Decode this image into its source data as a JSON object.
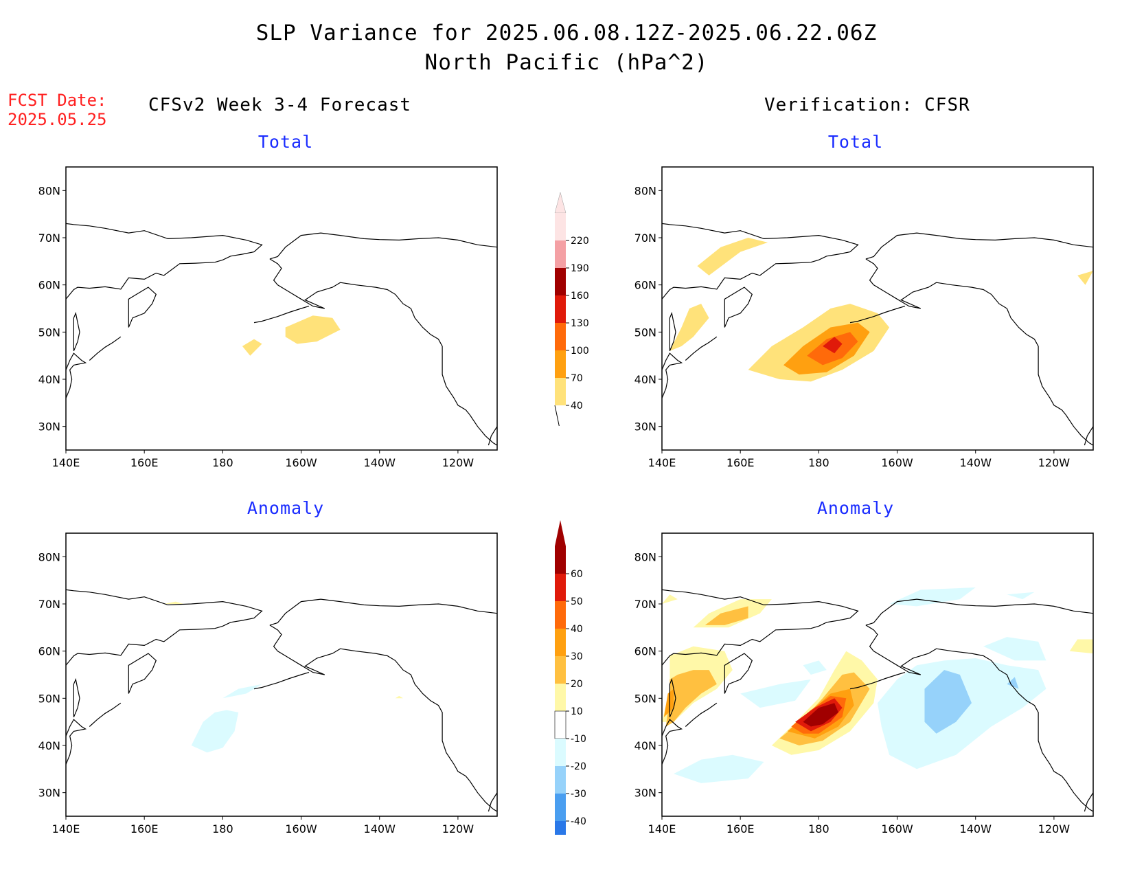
{
  "header": {
    "title_line1": "SLP Variance for 2025.06.08.12Z-2025.06.22.06Z",
    "title_line2": "North Pacific (hPa^2)"
  },
  "fcst": {
    "label": "FCST Date:",
    "date": "2025.05.25"
  },
  "columns": {
    "forecast": "CFSv2 Week 3-4 Forecast",
    "verification": "Verification: CFSR"
  },
  "panels": [
    {
      "id": "fcst-total",
      "label": "Total"
    },
    {
      "id": "verif-total",
      "label": "Total"
    },
    {
      "id": "fcst-anomaly",
      "label": "Anomaly"
    },
    {
      "id": "verif-anomaly",
      "label": "Anomaly"
    }
  ],
  "axes": {
    "lat_labels": [
      "80N",
      "70N",
      "60N",
      "50N",
      "40N",
      "30N"
    ],
    "lon_labels": [
      "140E",
      "160E",
      "180",
      "160W",
      "140W",
      "120W"
    ],
    "lat_values": [
      80,
      70,
      60,
      50,
      40,
      30
    ],
    "lon_values": [
      140,
      160,
      180,
      200,
      220,
      240
    ],
    "lat_range": [
      25,
      85
    ],
    "lon_range": [
      140,
      250
    ]
  },
  "colorbar_total": {
    "levels": [
      "220",
      "190",
      "160",
      "130",
      "100",
      "70",
      "40"
    ],
    "colors": [
      "#fde4e4",
      "#f4a0a4",
      "#a00000",
      "#e01a0a",
      "#ff6a0a",
      "#ffa010",
      "#ffe27a"
    ]
  },
  "colorbar_anomaly": {
    "levels": [
      "60",
      "50",
      "40",
      "30",
      "20",
      "10",
      "-10",
      "-20",
      "-30",
      "-40"
    ],
    "colors": [
      "#a00000",
      "#e01a0a",
      "#ff6a0a",
      "#ffa010",
      "#ffc040",
      "#fff8a8",
      "#ffffff",
      "#dbfbff",
      "#96d2fa",
      "#4a9ef0",
      "#2a78e8",
      "#1060d8"
    ]
  }
}
